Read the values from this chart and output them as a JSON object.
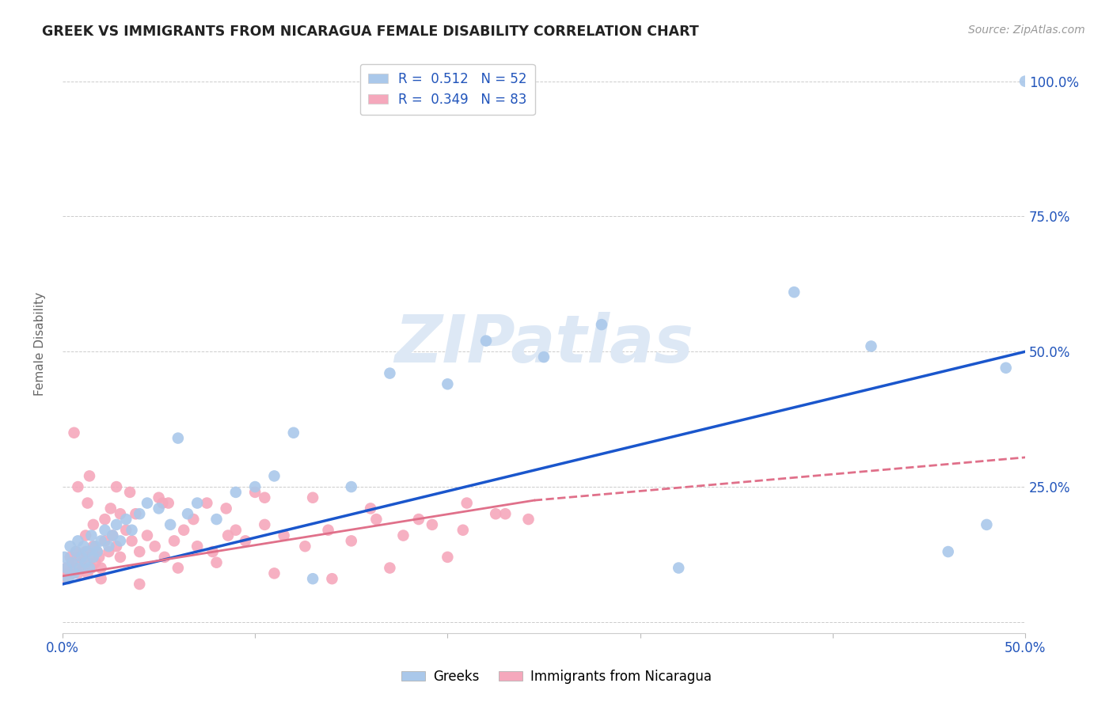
{
  "title": "GREEK VS IMMIGRANTS FROM NICARAGUA FEMALE DISABILITY CORRELATION CHART",
  "source": "Source: ZipAtlas.com",
  "ylabel": "Female Disability",
  "xlim": [
    0.0,
    0.5
  ],
  "ylim": [
    -0.02,
    1.05
  ],
  "ytick_vals": [
    0.0,
    0.25,
    0.5,
    0.75,
    1.0
  ],
  "ytick_labels_right": [
    "",
    "25.0%",
    "50.0%",
    "75.0%",
    "100.0%"
  ],
  "xtick_vals": [
    0.0,
    0.1,
    0.2,
    0.3,
    0.4,
    0.5
  ],
  "xtick_labels": [
    "0.0%",
    "",
    "",
    "",
    "",
    "50.0%"
  ],
  "greek_color": "#aac8ea",
  "nicaragua_color": "#f5a8bc",
  "greek_line_color": "#1a56cc",
  "nicaragua_line_color": "#e0708a",
  "watermark_color": "#dde8f5",
  "legend_R1": "0.512",
  "legend_N1": "52",
  "legend_R2": "0.349",
  "legend_N2": "83",
  "greek_x": [
    0.001,
    0.002,
    0.003,
    0.004,
    0.005,
    0.006,
    0.007,
    0.008,
    0.009,
    0.01,
    0.011,
    0.012,
    0.013,
    0.014,
    0.015,
    0.016,
    0.017,
    0.018,
    0.02,
    0.022,
    0.024,
    0.026,
    0.028,
    0.03,
    0.033,
    0.036,
    0.04,
    0.044,
    0.05,
    0.056,
    0.06,
    0.065,
    0.07,
    0.08,
    0.09,
    0.1,
    0.11,
    0.12,
    0.13,
    0.15,
    0.17,
    0.2,
    0.22,
    0.25,
    0.28,
    0.32,
    0.38,
    0.42,
    0.46,
    0.48,
    0.49,
    0.5
  ],
  "greek_y": [
    0.12,
    0.1,
    0.08,
    0.14,
    0.11,
    0.09,
    0.13,
    0.15,
    0.1,
    0.12,
    0.14,
    0.11,
    0.13,
    0.1,
    0.16,
    0.12,
    0.14,
    0.13,
    0.15,
    0.17,
    0.14,
    0.16,
    0.18,
    0.15,
    0.19,
    0.17,
    0.2,
    0.22,
    0.21,
    0.18,
    0.34,
    0.2,
    0.22,
    0.19,
    0.24,
    0.25,
    0.27,
    0.35,
    0.08,
    0.25,
    0.46,
    0.44,
    0.52,
    0.49,
    0.55,
    0.1,
    0.61,
    0.51,
    0.13,
    0.18,
    0.47,
    1.0
  ],
  "nicaragua_x": [
    0.001,
    0.002,
    0.003,
    0.004,
    0.005,
    0.006,
    0.007,
    0.008,
    0.009,
    0.01,
    0.011,
    0.012,
    0.013,
    0.014,
    0.015,
    0.016,
    0.017,
    0.018,
    0.019,
    0.02,
    0.022,
    0.024,
    0.026,
    0.028,
    0.03,
    0.033,
    0.036,
    0.04,
    0.044,
    0.048,
    0.053,
    0.058,
    0.063,
    0.07,
    0.078,
    0.086,
    0.095,
    0.105,
    0.115,
    0.126,
    0.138,
    0.15,
    0.163,
    0.177,
    0.192,
    0.208,
    0.225,
    0.242,
    0.013,
    0.025,
    0.038,
    0.052,
    0.068,
    0.085,
    0.105,
    0.008,
    0.016,
    0.03,
    0.05,
    0.075,
    0.1,
    0.005,
    0.02,
    0.04,
    0.06,
    0.08,
    0.11,
    0.14,
    0.17,
    0.2,
    0.014,
    0.022,
    0.035,
    0.055,
    0.09,
    0.13,
    0.16,
    0.185,
    0.21,
    0.23,
    0.006,
    0.012,
    0.028
  ],
  "nicaragua_y": [
    0.08,
    0.1,
    0.09,
    0.12,
    0.11,
    0.1,
    0.13,
    0.09,
    0.12,
    0.11,
    0.1,
    0.13,
    0.09,
    0.12,
    0.1,
    0.14,
    0.11,
    0.13,
    0.12,
    0.1,
    0.15,
    0.13,
    0.16,
    0.14,
    0.12,
    0.17,
    0.15,
    0.13,
    0.16,
    0.14,
    0.12,
    0.15,
    0.17,
    0.14,
    0.13,
    0.16,
    0.15,
    0.18,
    0.16,
    0.14,
    0.17,
    0.15,
    0.19,
    0.16,
    0.18,
    0.17,
    0.2,
    0.19,
    0.22,
    0.21,
    0.2,
    0.22,
    0.19,
    0.21,
    0.23,
    0.25,
    0.18,
    0.2,
    0.23,
    0.22,
    0.24,
    0.09,
    0.08,
    0.07,
    0.1,
    0.11,
    0.09,
    0.08,
    0.1,
    0.12,
    0.27,
    0.19,
    0.24,
    0.22,
    0.17,
    0.23,
    0.21,
    0.19,
    0.22,
    0.2,
    0.35,
    0.16,
    0.25
  ]
}
